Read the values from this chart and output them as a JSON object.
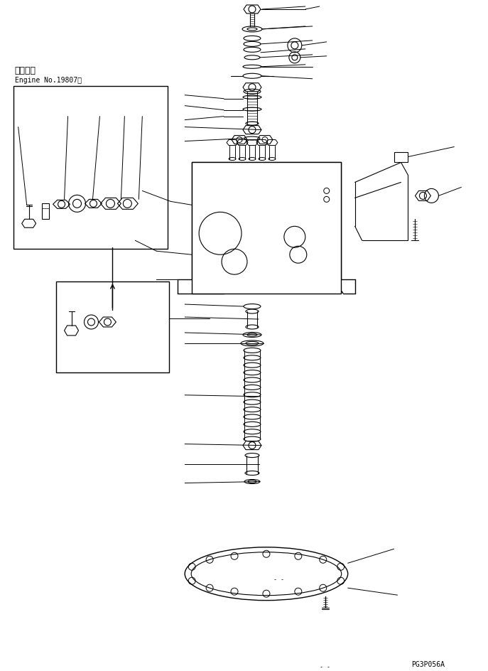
{
  "bg_color": "#ffffff",
  "line_color": "#000000",
  "title_jp": "適用号機",
  "title_en": "Engine No.19807～",
  "part_code": "PG3P056A",
  "fig_width": 6.87,
  "fig_height": 9.45,
  "dpi": 100
}
